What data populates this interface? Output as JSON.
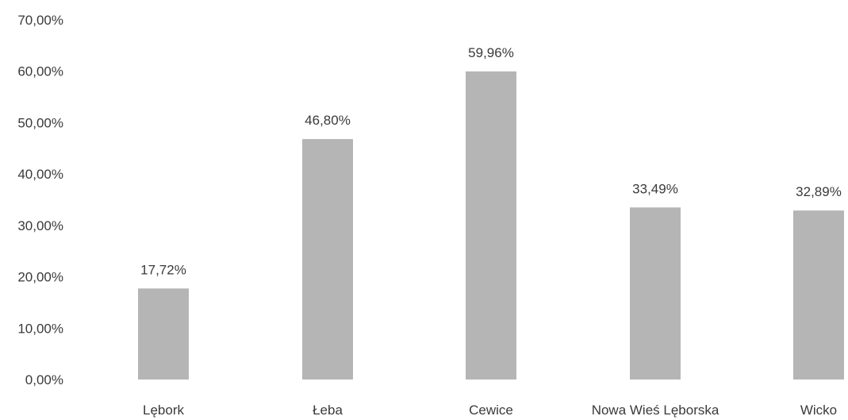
{
  "chart_data": {
    "type": "bar",
    "categories": [
      "Lębork",
      "Łeba",
      "Cewice",
      "Nowa Wieś Lęborska",
      "Wicko"
    ],
    "values": [
      17.72,
      46.8,
      59.96,
      33.49,
      32.89
    ],
    "data_labels": [
      "17,72%",
      "46,80%",
      "59,96%",
      "33,49%",
      "32,89%"
    ],
    "y_ticks": [
      0,
      10,
      20,
      30,
      40,
      50,
      60,
      70
    ],
    "y_tick_labels": [
      "0,00%",
      "10,00%",
      "20,00%",
      "30,00%",
      "40,00%",
      "50,00%",
      "60,00%",
      "70,00%"
    ],
    "ylim": [
      0,
      70
    ],
    "grid": false,
    "legend": false,
    "title": "",
    "xlabel": "",
    "ylabel": "",
    "colors": {
      "bar": "#b5b5b5",
      "text": "#3a3a3a"
    }
  }
}
